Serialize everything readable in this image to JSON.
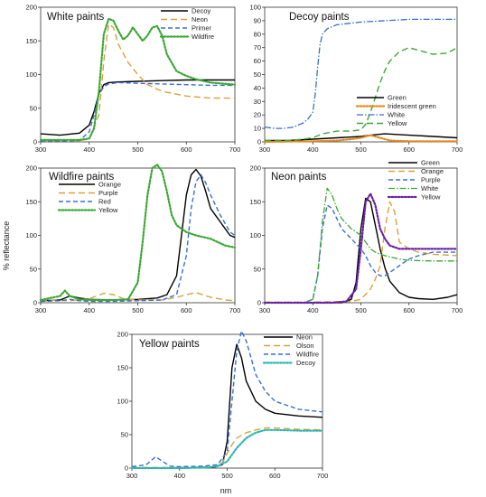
{
  "figure": {
    "ylabel": "% reflectance",
    "xlabel": "nm"
  },
  "chart_data": [
    {
      "type": "line",
      "title": "White paints",
      "xlim": [
        300,
        700
      ],
      "ylim": [
        0,
        200
      ],
      "xticks": [
        300,
        400,
        500,
        600,
        700
      ],
      "yticks": [
        0,
        50,
        100,
        150,
        200
      ],
      "grid": false,
      "legend": "top-right",
      "series": [
        {
          "name": "Decoy",
          "color": "#000000",
          "dash": "solid",
          "x": [
            300,
            340,
            380,
            400,
            410,
            420,
            430,
            440,
            460,
            500,
            550,
            600,
            650,
            700
          ],
          "y": [
            12,
            10,
            13,
            25,
            45,
            72,
            85,
            88,
            89,
            90,
            91,
            92,
            92,
            92
          ]
        },
        {
          "name": "Neon",
          "color": "#d9a13a",
          "dash": "long",
          "x": [
            300,
            380,
            400,
            420,
            430,
            440,
            450,
            460,
            480,
            500,
            520,
            550,
            600,
            650,
            700
          ],
          "y": [
            2,
            2,
            4,
            40,
            120,
            175,
            170,
            145,
            118,
            100,
            85,
            75,
            68,
            65,
            65
          ]
        },
        {
          "name": "Primer",
          "color": "#3a6fd0",
          "dash": "dash",
          "x": [
            300,
            380,
            400,
            410,
            420,
            430,
            440,
            460,
            500,
            550,
            600,
            650,
            700
          ],
          "y": [
            1,
            2,
            15,
            40,
            70,
            82,
            86,
            88,
            87,
            86,
            85,
            84,
            84
          ]
        },
        {
          "name": "Wildfire",
          "color": "#3aa832",
          "dash": "dot",
          "x": [
            300,
            380,
            400,
            410,
            420,
            430,
            440,
            450,
            460,
            470,
            480,
            490,
            500,
            510,
            520,
            530,
            540,
            550,
            560,
            580,
            600,
            620,
            650,
            700
          ],
          "y": [
            3,
            3,
            5,
            20,
            75,
            160,
            183,
            180,
            165,
            152,
            158,
            170,
            160,
            150,
            158,
            170,
            172,
            158,
            130,
            105,
            98,
            93,
            88,
            85
          ]
        }
      ]
    },
    {
      "type": "line",
      "title": "Decoy paints",
      "xlim": [
        300,
        700
      ],
      "ylim": [
        0,
        100
      ],
      "xticks": [
        300,
        400,
        500,
        600,
        700
      ],
      "yticks": [
        0,
        10,
        20,
        30,
        40,
        50,
        60,
        70,
        80,
        90,
        100
      ],
      "grid": false,
      "legend": "bottom-right",
      "series": [
        {
          "name": "Green",
          "color": "#000000",
          "dash": "solid",
          "x": [
            300,
            350,
            400,
            450,
            500,
            520,
            550,
            600,
            650,
            700
          ],
          "y": [
            1,
            1,
            2,
            3,
            4,
            5,
            6,
            5,
            4,
            3
          ]
        },
        {
          "name": "Iridescent green",
          "color": "#e48a1a",
          "dash": "dot",
          "x": [
            300,
            400,
            450,
            480,
            500,
            520,
            540,
            560,
            600,
            650,
            700
          ],
          "y": [
            0,
            0.5,
            1,
            2,
            3,
            5,
            3,
            1,
            0.5,
            0.5,
            0.5
          ]
        },
        {
          "name": "White",
          "color": "#3a6fd0",
          "dash": "dashdot",
          "x": [
            300,
            320,
            340,
            360,
            380,
            390,
            400,
            405,
            410,
            415,
            420,
            430,
            450,
            500,
            550,
            600,
            650,
            700
          ],
          "y": [
            11,
            10,
            10,
            11,
            14,
            17,
            22,
            35,
            55,
            72,
            80,
            84,
            87,
            89,
            90,
            91,
            91,
            91
          ]
        },
        {
          "name": "Yellow",
          "color": "#3aa832",
          "dash": "long",
          "x": [
            300,
            350,
            380,
            400,
            420,
            450,
            480,
            500,
            510,
            520,
            530,
            540,
            550,
            560,
            580,
            600,
            620,
            650,
            680,
            700
          ],
          "y": [
            1,
            1,
            2,
            3,
            6,
            8,
            8,
            9,
            13,
            22,
            33,
            44,
            53,
            60,
            67,
            70,
            68,
            65,
            66,
            70
          ]
        }
      ]
    },
    {
      "type": "line",
      "title": "Wildfire paints",
      "xlim": [
        300,
        700
      ],
      "ylim": [
        0,
        200
      ],
      "xticks": [
        300,
        400,
        500,
        600,
        700
      ],
      "yticks": [
        0,
        50,
        100,
        150,
        200
      ],
      "grid": false,
      "legend": "top-left",
      "series": [
        {
          "name": "Orange",
          "color": "#000000",
          "dash": "solid",
          "x": [
            300,
            340,
            360,
            380,
            400,
            450,
            500,
            540,
            560,
            580,
            590,
            600,
            610,
            620,
            630,
            640,
            650,
            670,
            690,
            700
          ],
          "y": [
            3,
            4,
            10,
            7,
            5,
            4,
            5,
            7,
            12,
            40,
            100,
            160,
            190,
            198,
            188,
            165,
            140,
            120,
            100,
            97
          ]
        },
        {
          "name": "Purple",
          "color": "#d9a13a",
          "dash": "long",
          "x": [
            300,
            360,
            400,
            430,
            450,
            470,
            500,
            550,
            580,
            600,
            620,
            650,
            680,
            700
          ],
          "y": [
            4,
            3,
            6,
            14,
            12,
            6,
            4,
            4,
            8,
            12,
            15,
            8,
            4,
            3
          ]
        },
        {
          "name": "Red",
          "color": "#3a6fd0",
          "dash": "dash",
          "x": [
            300,
            340,
            360,
            380,
            400,
            450,
            500,
            550,
            580,
            600,
            610,
            620,
            630,
            640,
            650,
            670,
            690,
            700
          ],
          "y": [
            2,
            3,
            5,
            3,
            2,
            2,
            3,
            4,
            12,
            70,
            140,
            180,
            190,
            178,
            160,
            130,
            105,
            100
          ]
        },
        {
          "name": "Yellow",
          "color": "#3aa832",
          "dash": "dot",
          "x": [
            300,
            340,
            350,
            360,
            380,
            400,
            450,
            480,
            500,
            510,
            520,
            530,
            540,
            550,
            560,
            570,
            580,
            600,
            620,
            650,
            680,
            700
          ],
          "y": [
            4,
            10,
            18,
            10,
            5,
            4,
            4,
            5,
            30,
            90,
            160,
            200,
            205,
            195,
            165,
            130,
            115,
            105,
            100,
            95,
            85,
            82
          ]
        }
      ]
    },
    {
      "type": "line",
      "title": "Neon paints",
      "xlim": [
        300,
        700
      ],
      "ylim": [
        0,
        200
      ],
      "xticks": [
        300,
        400,
        500,
        600,
        700
      ],
      "yticks": [
        0,
        50,
        100,
        150,
        200
      ],
      "grid": false,
      "legend": "top-right",
      "series": [
        {
          "name": "Green",
          "color": "#000000",
          "dash": "solid",
          "x": [
            300,
            400,
            460,
            480,
            490,
            500,
            510,
            520,
            530,
            540,
            550,
            560,
            580,
            600,
            620,
            650,
            680,
            700
          ],
          "y": [
            0,
            0,
            0,
            5,
            30,
            110,
            155,
            150,
            115,
            80,
            52,
            32,
            15,
            8,
            6,
            5,
            8,
            12
          ]
        },
        {
          "name": "Orange",
          "color": "#d9a13a",
          "dash": "long",
          "x": [
            300,
            400,
            480,
            500,
            520,
            530,
            540,
            550,
            560,
            570,
            580,
            600,
            620,
            650,
            700
          ],
          "y": [
            1,
            1,
            2,
            5,
            20,
            35,
            55,
            110,
            150,
            135,
            90,
            80,
            75,
            72,
            70
          ]
        },
        {
          "name": "Purple",
          "color": "#3a6fd0",
          "dash": "dash",
          "x": [
            300,
            380,
            400,
            410,
            420,
            430,
            440,
            450,
            460,
            480,
            500,
            510,
            520,
            530,
            540,
            550,
            560,
            580,
            600,
            620,
            650,
            700
          ],
          "y": [
            0,
            0,
            5,
            40,
            110,
            145,
            140,
            125,
            110,
            95,
            80,
            70,
            55,
            45,
            40,
            40,
            45,
            55,
            65,
            70,
            75,
            75
          ]
        },
        {
          "name": "White",
          "color": "#3aa832",
          "dash": "dashdot",
          "x": [
            300,
            380,
            400,
            410,
            420,
            430,
            440,
            450,
            460,
            480,
            500,
            510,
            520,
            530,
            540,
            550,
            560,
            580,
            600,
            650,
            700
          ],
          "y": [
            0,
            0,
            5,
            40,
            120,
            170,
            160,
            140,
            125,
            110,
            100,
            90,
            80,
            75,
            72,
            70,
            68,
            65,
            63,
            62,
            62
          ]
        },
        {
          "name": "Yellow",
          "color": "#6a1fa8",
          "dash": "dot",
          "x": [
            300,
            440,
            470,
            490,
            500,
            510,
            520,
            530,
            540,
            550,
            560,
            580,
            600,
            650,
            700
          ],
          "y": [
            0,
            0,
            2,
            20,
            80,
            150,
            162,
            145,
            110,
            95,
            85,
            80,
            80,
            80,
            80
          ]
        }
      ]
    },
    {
      "type": "line",
      "title": "Yellow paints",
      "xlim": [
        300,
        700
      ],
      "ylim": [
        0,
        200
      ],
      "xticks": [
        300,
        400,
        500,
        600,
        700
      ],
      "yticks": [
        0,
        50,
        100,
        150,
        200
      ],
      "grid": false,
      "legend": "top-right",
      "series": [
        {
          "name": "Neon",
          "color": "#000000",
          "dash": "solid",
          "x": [
            300,
            400,
            470,
            490,
            500,
            510,
            520,
            530,
            540,
            550,
            560,
            580,
            600,
            650,
            700
          ],
          "y": [
            0,
            0,
            1,
            5,
            40,
            150,
            185,
            165,
            130,
            115,
            100,
            88,
            82,
            78,
            76
          ]
        },
        {
          "name": "Olson",
          "color": "#d9a13a",
          "dash": "long",
          "x": [
            300,
            400,
            470,
            490,
            500,
            510,
            520,
            540,
            560,
            580,
            600,
            650,
            700
          ],
          "y": [
            1,
            1,
            2,
            8,
            22,
            35,
            45,
            53,
            57,
            60,
            60,
            58,
            57
          ]
        },
        {
          "name": "Wildfire",
          "color": "#3a6fd0",
          "dash": "dash",
          "x": [
            300,
            330,
            350,
            360,
            380,
            400,
            450,
            480,
            500,
            510,
            520,
            530,
            540,
            550,
            560,
            580,
            600,
            650,
            700
          ],
          "y": [
            2,
            5,
            17,
            12,
            3,
            2,
            3,
            5,
            25,
            100,
            175,
            205,
            190,
            165,
            140,
            115,
            100,
            88,
            84
          ]
        },
        {
          "name": "Decoy",
          "color": "#2fb8b0",
          "dash": "dot",
          "x": [
            300,
            400,
            460,
            480,
            500,
            510,
            520,
            540,
            560,
            580,
            600,
            650,
            700
          ],
          "y": [
            0,
            0,
            1,
            3,
            10,
            20,
            30,
            45,
            53,
            57,
            57,
            56,
            56
          ]
        }
      ]
    }
  ]
}
